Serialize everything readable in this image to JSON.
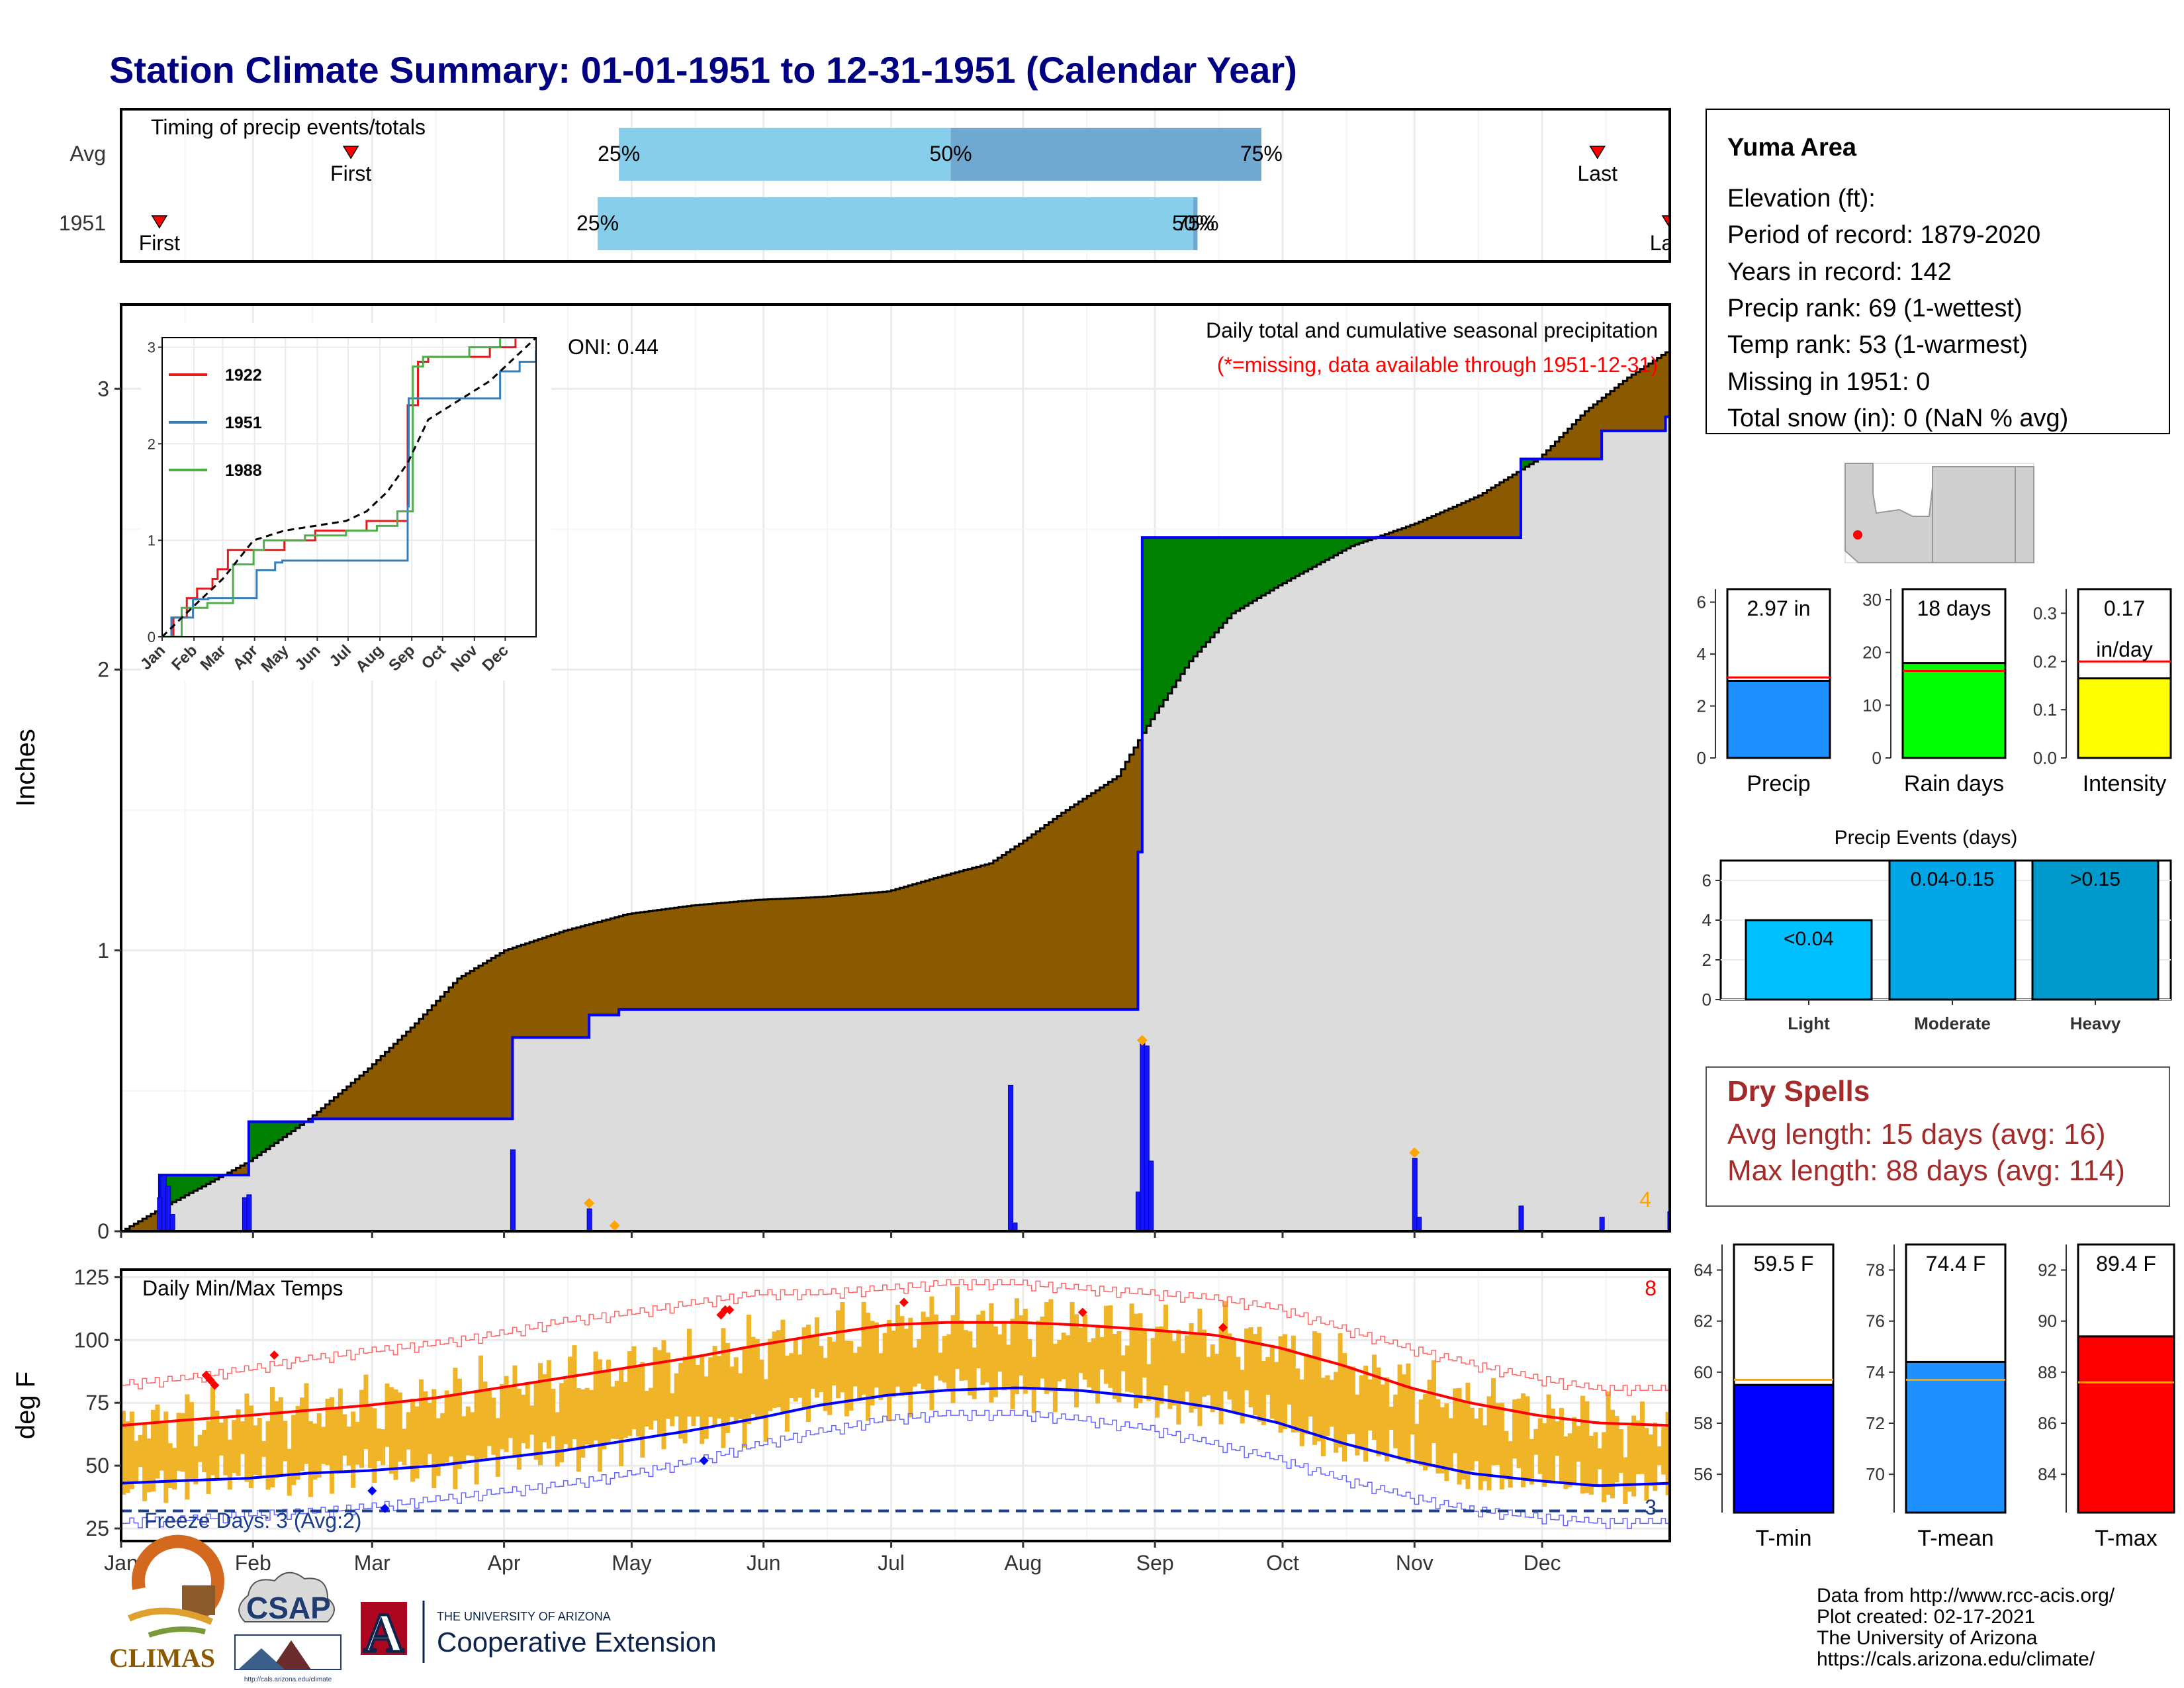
{
  "title": "Station Climate Summary: 01-01-1951 to 12-31-1951 (Calendar Year)",
  "months": [
    "Jan",
    "Feb",
    "Mar",
    "Apr",
    "May",
    "Jun",
    "Jul",
    "Aug",
    "Sep",
    "Oct",
    "Nov",
    "Dec"
  ],
  "timing": {
    "label": "Timing of precip events/totals",
    "rows": [
      "Avg",
      "1951"
    ],
    "avg": {
      "first_doy": 55,
      "last_doy": 348,
      "p25_doy": 118,
      "p50_doy": 196,
      "p75_doy": 269,
      "p25_label": "25%",
      "p50_label": "50%",
      "p75_label": "75%",
      "first_label": "First",
      "last_label": "Last"
    },
    "year": {
      "first_doy": 10,
      "last_doy": 365,
      "p25_doy": 113,
      "p50_doy": 253,
      "p75_doy": 254,
      "p25_label": "25%",
      "p50_label": "50%",
      "p75_label": "75%",
      "first_label": "First",
      "last_label": "Last"
    },
    "colors": {
      "light": "#87ceeb",
      "dark": "#6fa8d0",
      "marker": "#ff0000"
    }
  },
  "chart_data": [
    {
      "type": "area",
      "name": "cumulative-precip",
      "subtitle": "Daily total and cumulative seasonal precipitation",
      "note": "(*=missing, data available through 1951-12-31)",
      "ylabel": "Inches",
      "ylim": [
        0,
        3.3
      ],
      "yticks": [
        0,
        1,
        2,
        3
      ],
      "oni_label": "ONI: 0.44",
      "extreme_count": "4",
      "avg_cumulative": {
        "doy": [
          1,
          10,
          20,
          31,
          45,
          59,
          70,
          80,
          91,
          105,
          120,
          135,
          150,
          165,
          181,
          195,
          205,
          212,
          222,
          235,
          242,
          252,
          262,
          273,
          290,
          305,
          320,
          334,
          345,
          355,
          365
        ],
        "values": [
          0,
          0.08,
          0.16,
          0.25,
          0.4,
          0.58,
          0.74,
          0.9,
          1.0,
          1.07,
          1.13,
          1.16,
          1.18,
          1.19,
          1.21,
          1.27,
          1.31,
          1.38,
          1.49,
          1.62,
          1.8,
          2.03,
          2.2,
          2.3,
          2.44,
          2.52,
          2.62,
          2.75,
          2.92,
          3.04,
          3.14
        ]
      },
      "year_cumulative": {
        "doy": [
          1,
          10,
          20,
          31,
          46,
          93,
          111,
          118,
          210,
          240,
          241,
          305,
          330,
          349,
          364,
          365
        ],
        "values": [
          0,
          0.2,
          0.2,
          0.39,
          0.4,
          0.69,
          0.77,
          0.79,
          0.79,
          1.35,
          2.47,
          2.47,
          2.75,
          2.85,
          2.9,
          2.97
        ]
      },
      "daily": {
        "doy": [
          10,
          11,
          12,
          13,
          30,
          31,
          93,
          111,
          210,
          211,
          240,
          241,
          242,
          243,
          305,
          306,
          330,
          349,
          365
        ],
        "values": [
          0.12,
          0.2,
          0.16,
          0.06,
          0.12,
          0.13,
          0.29,
          0.08,
          0.52,
          0.03,
          0.14,
          0.68,
          0.66,
          0.25,
          0.26,
          0.05,
          0.09,
          0.05,
          0.07
        ]
      },
      "extremes_doy": [
        111,
        117,
        241,
        305
      ],
      "extremes_values": [
        0.1,
        0.02,
        0.68,
        0.28
      ],
      "colors": {
        "above": "#8b5a00",
        "below": "#008000",
        "fill": "#dcdcdc",
        "line": "#0000ff",
        "daily": "#1414ff",
        "marker": "#ffa500"
      },
      "inset": {
        "type": "line",
        "yticks": [
          0,
          1,
          2,
          3
        ],
        "ylim": [
          0,
          3.1
        ],
        "series": [
          {
            "name": "1922",
            "color": "#e41a1c",
            "doy": [
              1,
              12,
              25,
              35,
              50,
              55,
              65,
              100,
              120,
              150,
              200,
              230,
              240,
              250,
              260,
              290,
              320,
              345,
              365
            ],
            "values": [
              0,
              0.2,
              0.4,
              0.5,
              0.6,
              0.7,
              0.9,
              0.9,
              1.0,
              1.1,
              1.2,
              1.2,
              2.4,
              2.85,
              2.9,
              2.9,
              3.0,
              3.25,
              3.3
            ]
          },
          {
            "name": "1951",
            "color": "#377eb8",
            "doy": [
              1,
              10,
              31,
              46,
              93,
              111,
              118,
              210,
              240,
              241,
              305,
              330,
              349,
              365
            ],
            "values": [
              0,
              0.2,
              0.39,
              0.4,
              0.69,
              0.77,
              0.79,
              0.79,
              1.35,
              2.47,
              2.47,
              2.75,
              2.85,
              2.97
            ]
          },
          {
            "name": "1988",
            "color": "#4daf4a",
            "doy": [
              1,
              20,
              45,
              60,
              70,
              90,
              100,
              140,
              180,
              210,
              230,
              245,
              255,
              300,
              330,
              345,
              365
            ],
            "values": [
              0,
              0.3,
              0.35,
              0.35,
              0.75,
              0.9,
              1.0,
              1.05,
              1.1,
              1.15,
              1.3,
              2.8,
              2.9,
              3.0,
              3.1,
              3.2,
              3.2
            ]
          }
        ],
        "avg": {
          "doy": [
            1,
            30,
            60,
            90,
            120,
            150,
            180,
            200,
            220,
            240,
            260,
            290,
            320,
            350,
            365
          ],
          "values": [
            0,
            0.3,
            0.6,
            1.0,
            1.1,
            1.15,
            1.2,
            1.3,
            1.5,
            1.8,
            2.25,
            2.45,
            2.65,
            2.95,
            3.1
          ]
        }
      }
    },
    {
      "type": "bar",
      "name": "daily-temps",
      "subtitle": "Daily Min/Max Temps",
      "ylabel": "deg F",
      "ylim": [
        20,
        128
      ],
      "yticks": [
        25,
        50,
        75,
        100,
        125
      ],
      "extreme_count": "8",
      "freeze_label": "Freeze Days: 3 (Avg:2)",
      "freeze_count": "3",
      "freeze_line": 32,
      "normals": {
        "doy": [
          1,
          15,
          31,
          45,
          59,
          75,
          90,
          105,
          120,
          135,
          151,
          165,
          181,
          195,
          212,
          226,
          243,
          258,
          273,
          288,
          304,
          318,
          334,
          348,
          365
        ],
        "tmax": [
          66,
          68,
          70,
          72,
          74,
          77,
          81,
          85,
          89,
          93,
          98,
          102,
          106,
          107,
          107,
          106,
          104,
          102,
          97,
          90,
          81,
          75,
          70,
          67,
          66
        ],
        "tmin": [
          43,
          44,
          45,
          47,
          48,
          50,
          53,
          56,
          60,
          64,
          69,
          74,
          78,
          80,
          81,
          80,
          77,
          73,
          67,
          59,
          52,
          47,
          44,
          42,
          43
        ],
        "rec_max": [
          82,
          84,
          88,
          92,
          95,
          98,
          102,
          107,
          110,
          114,
          118,
          118,
          120,
          122,
          122,
          120,
          118,
          116,
          112,
          104,
          96,
          90,
          84,
          80,
          80
        ],
        "rec_min": [
          27,
          28,
          30,
          31,
          33,
          36,
          39,
          42,
          46,
          51,
          58,
          63,
          68,
          70,
          70,
          68,
          64,
          58,
          52,
          44,
          37,
          32,
          29,
          27,
          27
        ]
      },
      "extremes": {
        "max_doy": [
          21,
          22,
          23,
          37,
          142,
          143,
          144,
          185,
          227,
          260
        ],
        "max_val": [
          86,
          84,
          82,
          94,
          110,
          112,
          112,
          115,
          111,
          105
        ],
        "min_doy": [
          60,
          63,
          138
        ],
        "min_val": [
          40,
          33,
          52
        ]
      },
      "colors": {
        "bars": "#f0b429",
        "tmax": "#ff0000",
        "tmin": "#0000ff",
        "freeze": "#1a3e8c",
        "extreme_max": "#ff0000",
        "extreme_min": "#0000ff"
      }
    },
    {
      "type": "bar",
      "name": "precip-summary",
      "categories": [
        "Precip",
        "Rain days",
        "Intensity"
      ],
      "values": [
        2.97,
        18,
        0.165
      ],
      "averages": [
        3.1,
        16.5,
        0.2
      ],
      "labels": [
        "2.97 in",
        "18 days",
        "0.17 in/day"
      ],
      "ylims": [
        [
          0,
          6.5
        ],
        [
          0,
          32
        ],
        [
          0,
          0.35
        ]
      ],
      "yticks": [
        [
          0,
          2,
          4,
          6
        ],
        [
          0,
          10,
          20,
          30
        ],
        [
          0.0,
          0.1,
          0.2,
          0.3
        ]
      ],
      "colors": [
        "#1e90ff",
        "#00ff00",
        "#ffff00"
      ]
    },
    {
      "type": "bar",
      "name": "precip-events",
      "title": "Precip Events (days)",
      "categories": [
        "Light",
        "Moderate",
        "Heavy"
      ],
      "bar_labels": [
        "<0.04",
        "0.04-0.15",
        ">0.15"
      ],
      "values": [
        4,
        7,
        7
      ],
      "ylim": [
        0,
        7
      ],
      "yticks": [
        0,
        2,
        4,
        6
      ],
      "colors": [
        "#00bfff",
        "#00a6e6",
        "#0099cc"
      ]
    },
    {
      "type": "bar",
      "name": "temp-summary",
      "categories": [
        "T-min",
        "T-mean",
        "T-max"
      ],
      "values": [
        59.5,
        74.4,
        89.4
      ],
      "averages": [
        59.7,
        73.7,
        87.6
      ],
      "labels": [
        "59.5 F",
        "74.4 F",
        "89.4 F"
      ],
      "ylims": [
        [
          54.5,
          65
        ],
        [
          68.5,
          79
        ],
        [
          82.5,
          93
        ]
      ],
      "yticks": [
        [
          56,
          58,
          60,
          62,
          64
        ],
        [
          70,
          72,
          74,
          76,
          78
        ],
        [
          84,
          86,
          88,
          90,
          92
        ]
      ],
      "colors": [
        "#0000ff",
        "#1e90ff",
        "#ff0000"
      ]
    }
  ],
  "station": {
    "name": "Yuma Area",
    "lines": [
      "Elevation (ft):",
      "Period of record: 1879-2020",
      "Years in record: 142",
      "Precip rank: 69 (1-wettest)",
      "Temp rank: 53 (1-warmest)",
      "Missing in 1951: 0",
      "Total snow (in): 0 (NaN % avg)"
    ]
  },
  "dry_spells": {
    "title": "Dry Spells",
    "avg": "Avg length: 15 days (avg: 16)",
    "max": "Max length: 88 days (avg: 114)",
    "color": "#a52a2a"
  },
  "footer": {
    "source_lines": [
      "Data from http://www.rcc-acis.org/",
      "Plot created: 02-17-2021",
      "The University of Arizona",
      "https://cals.arizona.edu/climate/"
    ],
    "climas": "CLIMAS",
    "csap": "CSAP",
    "csap_url": "http://cals.arizona.edu/climate",
    "ua_line1": "THE UNIVERSITY OF ARIZONA",
    "ua_line2": "Cooperative Extension",
    "ua_letter": "A"
  }
}
